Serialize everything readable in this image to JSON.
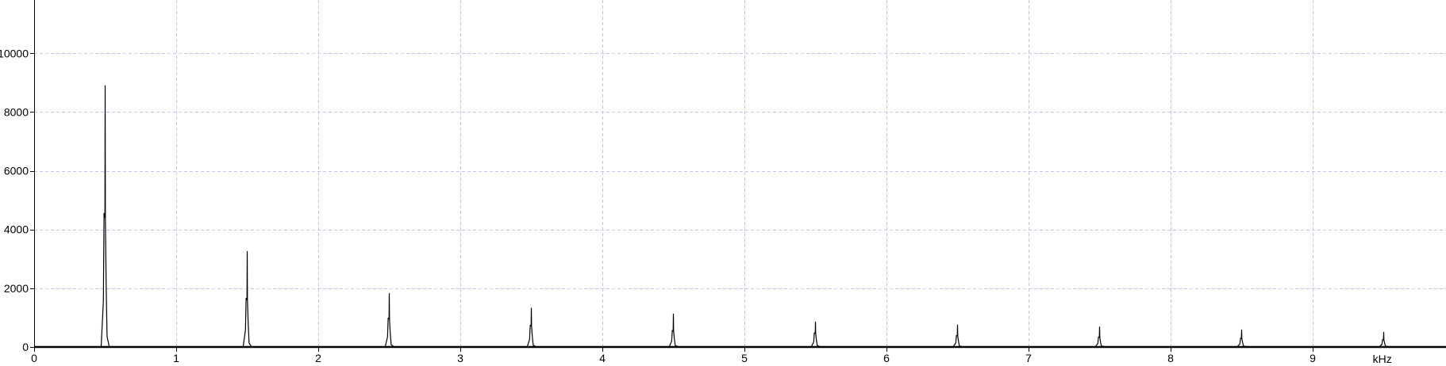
{
  "chart_data": {
    "type": "line",
    "title": "",
    "xlabel": "kHz",
    "ylabel": "",
    "xlim": [
      0,
      10.2
    ],
    "ylim": [
      0,
      11700
    ],
    "x_ticks": [
      0,
      1,
      2,
      3,
      4,
      5,
      6,
      7,
      8,
      9
    ],
    "y_ticks": [
      0,
      2000,
      4000,
      6000,
      8000,
      10000
    ],
    "x_tick_labels": [
      "0",
      "1",
      "2",
      "3",
      "4",
      "5",
      "6",
      "7",
      "8",
      "9"
    ],
    "y_tick_labels": [
      "0",
      "2000",
      "4000",
      "6000",
      "8000",
      "10000"
    ],
    "grid": true,
    "legend": "none",
    "series": [
      {
        "x": [
          0.5,
          1.5,
          2.5,
          3.5,
          4.5,
          5.5,
          6.5,
          7.5,
          8.5,
          9.5
        ],
        "peak": [
          8900,
          3250,
          1820,
          1320,
          1120,
          850,
          750,
          680,
          580,
          500
        ],
        "shoulder": [
          4550,
          1660,
          980,
          740,
          560,
          480,
          390,
          340,
          300,
          250
        ]
      }
    ]
  },
  "colors": {
    "background": "#ffffff",
    "grid": "#c4c4ee",
    "axis": "#000000",
    "trace": "#000000"
  }
}
